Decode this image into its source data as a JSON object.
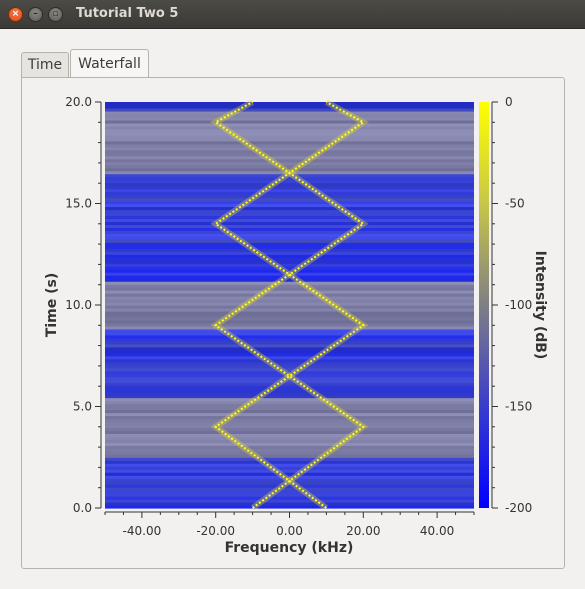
{
  "window": {
    "title": "Tutorial Two 5",
    "close_glyph": "×",
    "minimize_glyph": "–",
    "maximize_glyph": "▫"
  },
  "tabs": [
    {
      "label": "Time",
      "selected": false
    },
    {
      "label": "Waterfall",
      "selected": true
    }
  ],
  "chart_data": {
    "type": "heatmap",
    "xlabel": "Frequency (kHz)",
    "ylabel": "Time (s)",
    "colorbar_label": "Intensity (dB)",
    "xlim": [
      -50,
      50
    ],
    "ylim": [
      0,
      20
    ],
    "clim": [
      -200,
      0
    ],
    "x_ticks": [
      -40,
      -20,
      0,
      20,
      40
    ],
    "x_tick_labels": [
      "-40.00",
      "-20.00",
      "0.00",
      "20.00",
      "40.00"
    ],
    "y_ticks": [
      0,
      5,
      10,
      15,
      20
    ],
    "y_tick_labels": [
      "0.0",
      "5.0",
      "10.0",
      "15.0",
      "20.0"
    ],
    "colorbar_ticks": [
      0,
      -50,
      -100,
      -150,
      -200
    ],
    "colorbar_tick_labels": [
      "0",
      "-50",
      "-100",
      "-150",
      "-200"
    ],
    "colormap": [
      "#0000ff",
      "#3336cc",
      "#808080",
      "#cfcf40",
      "#ffff00"
    ],
    "signal": {
      "description_of_traces": "two symmetric chirps",
      "amplitude_khz": 20,
      "period_s": 10,
      "lines_a_vertices": [
        [
          -10,
          0
        ],
        [
          20,
          4
        ],
        [
          -20,
          9
        ],
        [
          20,
          14
        ],
        [
          -20,
          19
        ],
        [
          -10,
          20
        ]
      ],
      "lines_b_vertices": [
        [
          10,
          0
        ],
        [
          -20,
          4
        ],
        [
          20,
          9
        ],
        [
          -20,
          14
        ],
        [
          20,
          19
        ],
        [
          10,
          20
        ]
      ]
    },
    "bright_bands_s": [
      [
        2.5,
        5.5
      ],
      [
        8.8,
        11.2
      ],
      [
        16.5,
        19.5
      ]
    ]
  },
  "colors": {
    "titlebar": "#3c3b37",
    "background": "#f2f1f0",
    "trace": "#ffff20"
  }
}
